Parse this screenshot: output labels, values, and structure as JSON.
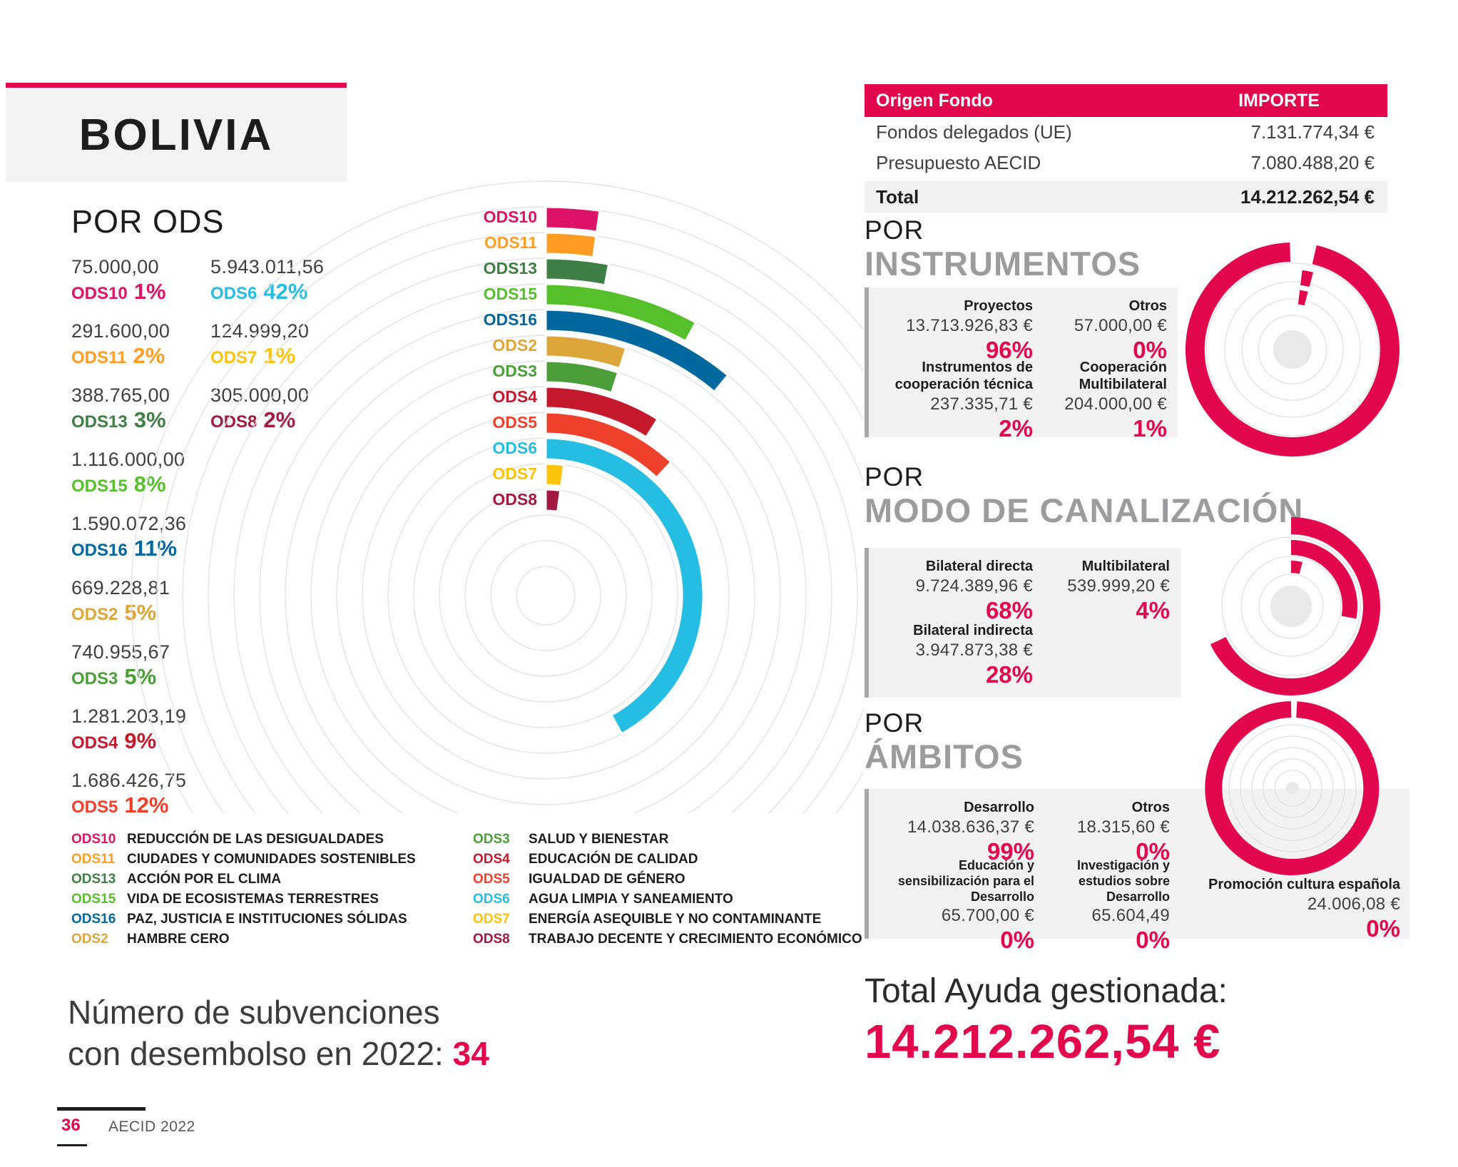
{
  "colors": {
    "accent": "#E2074D",
    "section_title_gray": "#9C9C9E",
    "box_gray": "#F2F2F2",
    "box_border_gray": "#A8A8AA",
    "grid_gray": "#E3E3E3",
    "text_dark": "#1D1D1B",
    "text_value": "#3F3F3E"
  },
  "header": {
    "country": "BOLIVIA"
  },
  "sections": {
    "instrumentos": {
      "kicker": "POR",
      "title": "INSTRUMENTOS"
    },
    "canalizacion": {
      "kicker": "POR",
      "title": "MODO DE CANALIZACIÓN"
    },
    "ambitos": {
      "kicker": "POR",
      "title": "ÁMBITOS"
    }
  },
  "subvenciones": {
    "line1": "Número de subvenciones",
    "line2": "con desembolso en 2022:",
    "count": "34"
  },
  "total_ayuda": {
    "label": "Total Ayuda gestionada:",
    "value": "14.212.262,54 €"
  },
  "footer": {
    "page_number": "36",
    "report_label": "AECID 2022"
  },
  "chart_data": [
    {
      "id": "por_ods",
      "type": "bar",
      "variant": "radial",
      "title": "POR ODS",
      "layout": {
        "ring_order": "outermost ODS10 to innermost ODS8",
        "start_angle": "12 o'clock",
        "direction": "clockwise",
        "grid": "concentric light-gray circles",
        "angle_per_pct_deg": 3.6
      },
      "items": [
        {
          "code": "ODS10",
          "name": "REDUCCIÓN DE LAS DESIGUALDADES",
          "value_display": "75.000,00",
          "value": 75000.0,
          "pct": 1,
          "pct_display": "1%",
          "color": "#DD1367"
        },
        {
          "code": "ODS11",
          "name": "CIUDADES Y COMUNIDADES SOSTENIBLES",
          "value_display": "291.600,00",
          "value": 291600.0,
          "pct": 2,
          "pct_display": "2%",
          "color": "#FD9D24"
        },
        {
          "code": "ODS13",
          "name": "ACCIÓN POR EL CLIMA",
          "value_display": "388.765,00",
          "value": 388765.0,
          "pct": 3,
          "pct_display": "3%",
          "color": "#3F7E44"
        },
        {
          "code": "ODS15",
          "name": "VIDA DE ECOSISTEMAS TERRESTRES",
          "value_display": "1.116.000,00",
          "value": 1116000.0,
          "pct": 8,
          "pct_display": "8%",
          "color": "#56C02B"
        },
        {
          "code": "ODS16",
          "name": "PAZ, JUSTICIA E INSTITUCIONES SÓLIDAS",
          "value_display": "1.590.072,36",
          "value": 1590072.36,
          "pct": 11,
          "pct_display": "11%",
          "color": "#00689D"
        },
        {
          "code": "ODS2",
          "name": "HAMBRE CERO",
          "value_display": "669.228,81",
          "value": 669228.81,
          "pct": 5,
          "pct_display": "5%",
          "color": "#DDA63A"
        },
        {
          "code": "ODS3",
          "name": "SALUD Y BIENESTAR",
          "value_display": "740.955,67",
          "value": 740955.67,
          "pct": 5,
          "pct_display": "5%",
          "color": "#4C9F38"
        },
        {
          "code": "ODS4",
          "name": "EDUCACIÓN DE CALIDAD",
          "value_display": "1.281.203,19",
          "value": 1281203.19,
          "pct": 9,
          "pct_display": "9%",
          "color": "#C5192D"
        },
        {
          "code": "ODS5",
          "name": "IGUALDAD DE GÉNERO",
          "value_display": "1.686.426,75",
          "value": 1686426.75,
          "pct": 12,
          "pct_display": "12%",
          "color": "#EF402B"
        },
        {
          "code": "ODS6",
          "name": "AGUA LIMPIA Y SANEAMIENTO",
          "value_display": "5.943.011,56",
          "value": 5943011.56,
          "pct": 42,
          "pct_display": "42%",
          "color": "#26BDE2"
        },
        {
          "code": "ODS7",
          "name": "ENERGÍA ASEQUIBLE Y NO CONTAMINANTE",
          "value_display": "124.999,20",
          "value": 124999.2,
          "pct": 1,
          "pct_display": "1%",
          "color": "#FCC30B"
        },
        {
          "code": "ODS8",
          "name": "TRABAJO DECENTE Y CRECIMIENTO ECONÓMICO",
          "value_display": "305.000,00",
          "value": 305000.0,
          "pct": 2,
          "pct_display": "2%",
          "color": "#A21942"
        }
      ]
    },
    {
      "id": "por_instrumentos",
      "type": "pie",
      "variant": "concentric-rings",
      "title": "POR INSTRUMENTOS",
      "ring_color": "#E2074D",
      "items": [
        {
          "label": "Proyectos",
          "value_display": "13.713.926,83 €",
          "pct": 96,
          "pct_display": "96%"
        },
        {
          "label": "Otros",
          "value_display": "57.000,00 €",
          "pct": 0,
          "pct_display": "0%"
        },
        {
          "label": "Instrumentos de cooperación técnica",
          "value_display": "237.335,71 €",
          "pct": 2,
          "pct_display": "2%"
        },
        {
          "label": "Cooperación Multibilateral",
          "value_display": "204.000,00 €",
          "pct": 1,
          "pct_display": "1%"
        }
      ]
    },
    {
      "id": "por_modo_canalizacion",
      "type": "pie",
      "variant": "concentric-rings",
      "title": "POR MODO DE CANALIZACIÓN",
      "ring_color": "#E2074D",
      "items": [
        {
          "label": "Bilateral directa",
          "value_display": "9.724.389,96 €",
          "pct": 68,
          "pct_display": "68%"
        },
        {
          "label": "Multibilateral",
          "value_display": "539.999,20 €",
          "pct": 4,
          "pct_display": "4%"
        },
        {
          "label": "Bilateral indirecta",
          "value_display": "3.947.873,38 €",
          "pct": 28,
          "pct_display": "28%"
        }
      ]
    },
    {
      "id": "por_ambitos",
      "type": "pie",
      "variant": "concentric-rings",
      "title": "POR ÁMBITOS",
      "ring_color": "#E2074D",
      "items": [
        {
          "label": "Desarrollo",
          "value_display": "14.038.636,37 €",
          "pct": 99,
          "pct_display": "99%"
        },
        {
          "label": "Otros",
          "value_display": "18.315,60 €",
          "pct": 0,
          "pct_display": "0%"
        },
        {
          "label": "Educación y sensibilización para el Desarrollo",
          "value_display": "65.700,00 €",
          "pct": 0,
          "pct_display": "0%"
        },
        {
          "label": "Investigación y estudios sobre Desarrollo",
          "value_display": "65.604,49",
          "pct": 0,
          "pct_display": "0%"
        },
        {
          "label": "Promoción cultura española",
          "value_display": "24.006,08 €",
          "pct": 0,
          "pct_display": "0%"
        }
      ]
    },
    {
      "id": "origen_fondos",
      "type": "table",
      "headers": [
        "Origen Fondo",
        "IMPORTE"
      ],
      "rows": [
        [
          "Fondos delegados (UE)",
          "7.131.774,34 €"
        ],
        [
          "Presupuesto AECID",
          "7.080.488,20 €"
        ]
      ],
      "total_row": [
        "Total",
        "14.212.262,54 €"
      ]
    }
  ]
}
